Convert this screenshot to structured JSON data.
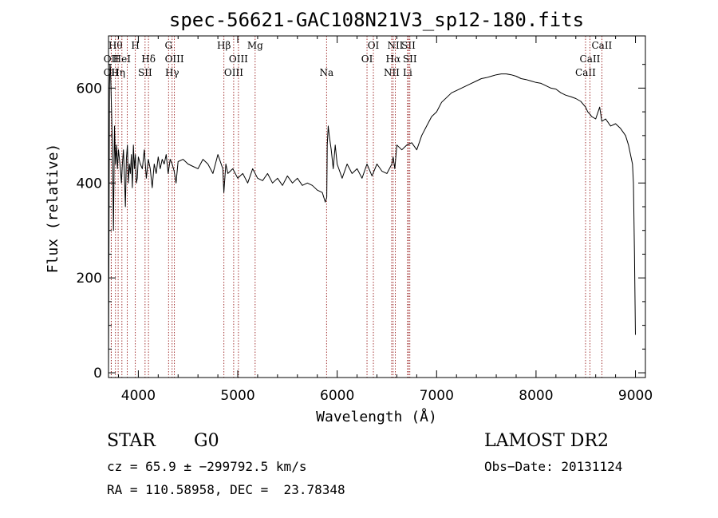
{
  "chart_data": {
    "type": "line",
    "title": "spec-56621-GAC108N21V3_sp12-180.fits",
    "xlabel": "Wavelength (Å)",
    "ylabel": "Flux (relative)",
    "xlim": [
      3700,
      9100
    ],
    "ylim": [
      -10,
      710
    ],
    "xticks": [
      {
        "value": 4000,
        "label": "4000"
      },
      {
        "value": 5000,
        "label": "5000"
      },
      {
        "value": 6000,
        "label": "6000"
      },
      {
        "value": 7000,
        "label": "7000"
      },
      {
        "value": 8000,
        "label": "8000"
      },
      {
        "value": 9000,
        "label": "9000"
      }
    ],
    "yticks": [
      {
        "value": 0,
        "label": "0"
      },
      {
        "value": 200,
        "label": "200"
      },
      {
        "value": 400,
        "label": "400"
      },
      {
        "value": 600,
        "label": "600"
      }
    ],
    "line_color": "#000000",
    "marker_color": "#8b0000",
    "series": [
      {
        "x": [
          3700,
          3705,
          3710,
          3715,
          3720,
          3730,
          3740,
          3750,
          3760,
          3770,
          3780,
          3790,
          3800,
          3810,
          3820,
          3830,
          3840,
          3850,
          3860,
          3870,
          3880,
          3890,
          3900,
          3910,
          3920,
          3930,
          3940,
          3950,
          3960,
          3970,
          3980,
          3990,
          4000,
          4020,
          4040,
          4060,
          4080,
          4100,
          4120,
          4140,
          4160,
          4180,
          4200,
          4220,
          4240,
          4260,
          4280,
          4300,
          4320,
          4340,
          4360,
          4380,
          4400,
          4450,
          4500,
          4550,
          4600,
          4650,
          4700,
          4750,
          4800,
          4850,
          4860,
          4880,
          4900,
          4950,
          5000,
          5050,
          5100,
          5150,
          5200,
          5250,
          5300,
          5350,
          5400,
          5450,
          5500,
          5550,
          5600,
          5650,
          5700,
          5750,
          5800,
          5850,
          5880,
          5895,
          5900,
          5910,
          5920,
          5940,
          5960,
          5980,
          6000,
          6050,
          6100,
          6150,
          6200,
          6250,
          6300,
          6350,
          6400,
          6450,
          6500,
          6550,
          6563,
          6580,
          6600,
          6650,
          6700,
          6750,
          6800,
          6850,
          6900,
          6950,
          7000,
          7050,
          7100,
          7150,
          7200,
          7250,
          7300,
          7350,
          7400,
          7450,
          7500,
          7550,
          7600,
          7650,
          7700,
          7750,
          7800,
          7850,
          7900,
          7950,
          8000,
          8050,
          8100,
          8150,
          8200,
          8250,
          8300,
          8350,
          8400,
          8450,
          8498,
          8520,
          8542,
          8560,
          8600,
          8640,
          8662,
          8700,
          8750,
          8800,
          8850,
          8900,
          8930,
          8950,
          8970,
          8980,
          8990,
          9000
        ],
        "y": [
          0,
          280,
          600,
          650,
          640,
          560,
          470,
          300,
          520,
          440,
          480,
          430,
          470,
          450,
          430,
          400,
          440,
          470,
          420,
          350,
          450,
          480,
          400,
          440,
          420,
          460,
          390,
          480,
          430,
          460,
          400,
          410,
          455,
          440,
          430,
          470,
          410,
          450,
          430,
          390,
          440,
          420,
          455,
          430,
          450,
          440,
          460,
          420,
          450,
          440,
          425,
          400,
          445,
          450,
          440,
          435,
          430,
          450,
          440,
          420,
          460,
          430,
          380,
          440,
          420,
          430,
          410,
          420,
          400,
          430,
          410,
          405,
          420,
          400,
          410,
          395,
          415,
          400,
          410,
          395,
          400,
          395,
          385,
          380,
          360,
          370,
          480,
          520,
          500,
          470,
          430,
          480,
          440,
          410,
          440,
          420,
          430,
          410,
          440,
          415,
          440,
          425,
          420,
          440,
          455,
          430,
          480,
          470,
          480,
          485,
          470,
          500,
          520,
          540,
          550,
          570,
          580,
          590,
          595,
          600,
          605,
          610,
          615,
          620,
          622,
          625,
          628,
          630,
          630,
          628,
          625,
          620,
          618,
          615,
          612,
          610,
          605,
          600,
          598,
          590,
          585,
          582,
          578,
          572,
          560,
          550,
          545,
          540,
          535,
          560,
          530,
          535,
          520,
          525,
          515,
          500,
          480,
          460,
          440,
          400,
          250,
          80
        ]
      }
    ],
    "lines": [
      {
        "wavelength": 3727,
        "name": "OII",
        "row": 1
      },
      {
        "wavelength": 3727,
        "name": "OII",
        "row": 2
      },
      {
        "wavelength": 3770,
        "name": "Hθ",
        "row": 0
      },
      {
        "wavelength": 3797,
        "name": "Hη",
        "row": 2
      },
      {
        "wavelength": 3835,
        "name": "HeI",
        "row": 1
      },
      {
        "wavelength": 3889,
        "name": "",
        "row": 0
      },
      {
        "wavelength": 3970,
        "name": "H",
        "row": 0
      },
      {
        "wavelength": 4068,
        "name": "SII",
        "row": 2
      },
      {
        "wavelength": 4102,
        "name": "Hδ",
        "row": 1
      },
      {
        "wavelength": 4304,
        "name": "G",
        "row": 0
      },
      {
        "wavelength": 4340,
        "name": "Hγ",
        "row": 2
      },
      {
        "wavelength": 4363,
        "name": "OIII",
        "row": 1
      },
      {
        "wavelength": 4861,
        "name": "Hβ",
        "row": 0
      },
      {
        "wavelength": 4959,
        "name": "OIII",
        "row": 2
      },
      {
        "wavelength": 5007,
        "name": "OIII",
        "row": 1
      },
      {
        "wavelength": 5175,
        "name": "Mg",
        "row": 0
      },
      {
        "wavelength": 5893,
        "name": "Na",
        "row": 2
      },
      {
        "wavelength": 6300,
        "name": "OI",
        "row": 1
      },
      {
        "wavelength": 6364,
        "name": "OI",
        "row": 0
      },
      {
        "wavelength": 6548,
        "name": "NII",
        "row": 2
      },
      {
        "wavelength": 6563,
        "name": "Hα",
        "row": 1
      },
      {
        "wavelength": 6584,
        "name": "NII",
        "row": 0
      },
      {
        "wavelength": 6708,
        "name": "Li",
        "row": 2
      },
      {
        "wavelength": 6717,
        "name": "SII",
        "row": 0
      },
      {
        "wavelength": 6731,
        "name": "SII",
        "row": 1
      },
      {
        "wavelength": 8498,
        "name": "CaII",
        "row": 2
      },
      {
        "wavelength": 8542,
        "name": "CaII",
        "row": 1
      },
      {
        "wavelength": 8662,
        "name": "CaII",
        "row": 0
      }
    ]
  },
  "info": {
    "object_class": "STAR",
    "subclass": "G0",
    "survey": "LAMOST DR2",
    "cz": "cz = 65.9 ± −299792.5 km/s",
    "obs_date": "Obs−Date: 20131124",
    "coords": "RA = 110.58958, DEC =  23.78348"
  }
}
